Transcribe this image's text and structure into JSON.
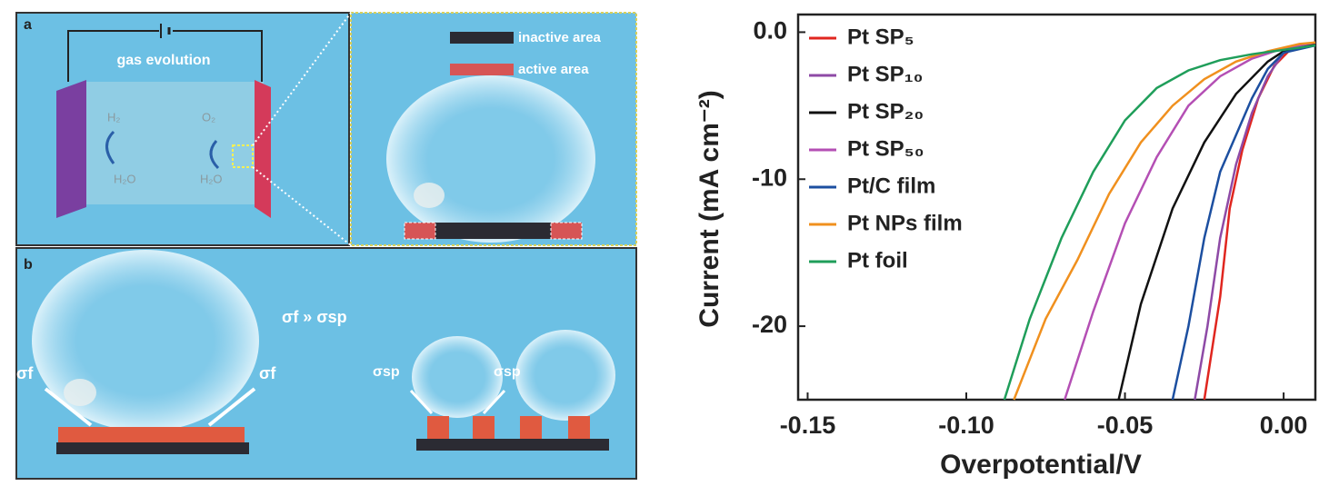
{
  "diagram": {
    "panel_a": "a",
    "gas_evolution": "gas evolution",
    "h2": "H₂",
    "h2o_left": "H₂O",
    "o2": "O₂",
    "h2o_right": "H₂O",
    "inactive": "inactive area",
    "active": "active area",
    "panel_b": "b",
    "sigma_relation": "σf  »  σsp",
    "sigma_f_left": "σf",
    "sigma_f_right": "σf",
    "sigma_sp_left": "σsp",
    "sigma_sp_right": "σsp"
  },
  "chart_data": {
    "type": "line",
    "x_label": "Overpotential/V",
    "y_label": "Current (mA cm⁻²)",
    "xlim": [
      -0.153,
      0.01
    ],
    "ylim": [
      -25,
      1.2
    ],
    "xticks": [
      -0.15,
      {
        "value": -0.1,
        "label": "-0.10"
      },
      -0.05,
      {
        "value": 0,
        "label": "0.00"
      }
    ],
    "yticks": [
      {
        "value": 0,
        "label": "0.0"
      },
      -10,
      -20
    ],
    "series": [
      {
        "name": "Pt SP₅",
        "color": "#e0261f",
        "x": [
          -0.025,
          -0.02,
          -0.017,
          -0.013,
          -0.008,
          -0.003,
          0.002,
          0.01
        ],
        "values": [
          -25,
          -18,
          -12,
          -8,
          -4.5,
          -2.3,
          -1.2,
          -0.7
        ]
      },
      {
        "name": "Pt SP₁₀",
        "color": "#8e4aa6",
        "x": [
          -0.028,
          -0.024,
          -0.02,
          -0.015,
          -0.01,
          -0.005,
          0,
          0.01
        ],
        "values": [
          -25,
          -20,
          -14,
          -9,
          -5.5,
          -3,
          -1.4,
          -0.8
        ]
      },
      {
        "name": "Pt SP₂₀",
        "color": "#111111",
        "x": [
          -0.052,
          -0.045,
          -0.035,
          -0.025,
          -0.015,
          -0.005,
          0,
          0.01
        ],
        "values": [
          -25,
          -18.5,
          -12,
          -7.5,
          -4.2,
          -2,
          -1.3,
          -0.8
        ]
      },
      {
        "name": "Pt SP₅₀",
        "color": "#b44fb4",
        "x": [
          -0.069,
          -0.06,
          -0.05,
          -0.04,
          -0.03,
          -0.02,
          -0.01,
          0,
          0.01
        ],
        "values": [
          -25,
          -19,
          -13,
          -8.5,
          -5,
          -3,
          -1.8,
          -1.1,
          -0.7
        ]
      },
      {
        "name": "Pt/C film",
        "color": "#1c4fa0",
        "x": [
          -0.035,
          -0.03,
          -0.025,
          -0.02,
          -0.01,
          -0.005,
          0,
          0.01
        ],
        "values": [
          -25,
          -20,
          -14,
          -9.5,
          -4.5,
          -2.5,
          -1.4,
          -0.9
        ]
      },
      {
        "name": "Pt NPs film",
        "color": "#f0901e",
        "x": [
          -0.085,
          -0.075,
          -0.065,
          -0.055,
          -0.045,
          -0.035,
          -0.025,
          -0.015,
          -0.005,
          0.005,
          0.01
        ],
        "values": [
          -25,
          -19.5,
          -15.5,
          -11,
          -7.5,
          -5,
          -3.2,
          -2,
          -1.3,
          -0.8,
          -0.7
        ]
      },
      {
        "name": "Pt foil",
        "color": "#1f9e5a",
        "x": [
          -0.088,
          -0.08,
          -0.07,
          -0.06,
          -0.05,
          -0.04,
          -0.03,
          -0.02,
          -0.01,
          0,
          0.01
        ],
        "values": [
          -25,
          -19.5,
          -14,
          -9.5,
          -6,
          -3.8,
          -2.6,
          -1.9,
          -1.5,
          -1.2,
          -0.9
        ]
      }
    ]
  }
}
